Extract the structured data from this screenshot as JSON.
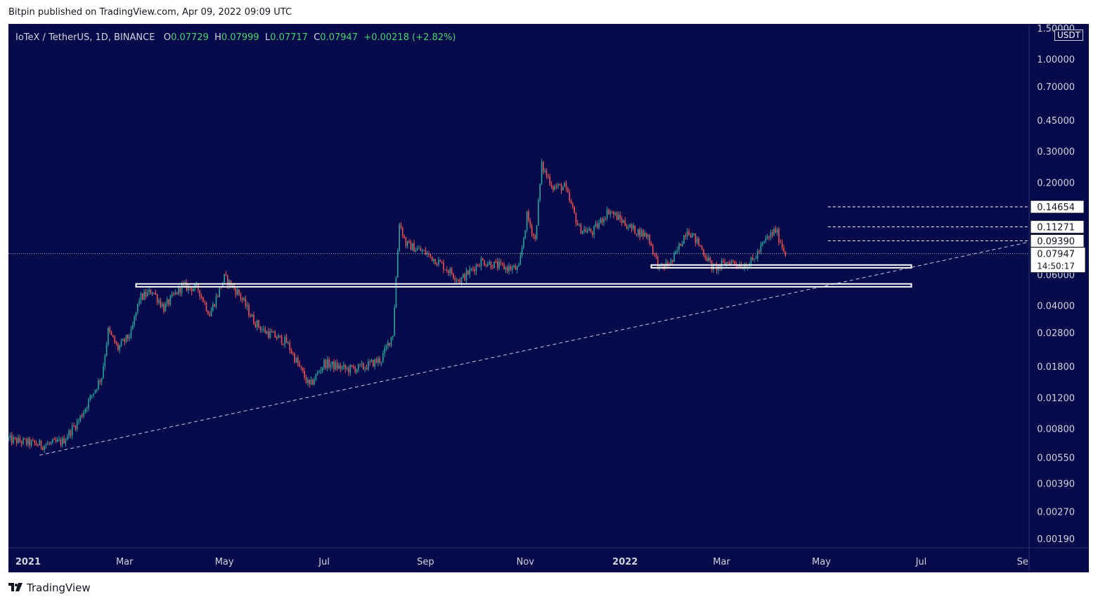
{
  "header": {
    "published_by": "Bitpin published on TradingView.com, Apr 09, 2022 09:09 UTC"
  },
  "legend": {
    "symbol": "IoTeX / TetherUS, 1D, BINANCE",
    "open_label": "O",
    "open": "0.07729",
    "high_label": "H",
    "high": "0.07999",
    "low_label": "L",
    "low": "0.07717",
    "close_label": "C",
    "close": "0.07947",
    "change": "+0.00218 (+2.82%)"
  },
  "currency_badge": "USDT",
  "footer": {
    "brand": "TradingView",
    "logo_icon": "tradingview-logo-icon"
  },
  "colors": {
    "background": "#06094a",
    "up": "#26a69a",
    "down": "#ef5350",
    "text": "#d1d4dc"
  },
  "chart_data": {
    "type": "candlestick",
    "scale": "log",
    "ylim": [
      0.0017,
      1.6
    ],
    "xlim": [
      "2020-12-20",
      "2022-09-05"
    ],
    "grid": false,
    "y_ticks": [
      {
        "value": 1.5,
        "label": "1.50000"
      },
      {
        "value": 1.0,
        "label": "1.00000"
      },
      {
        "value": 0.7,
        "label": "0.70000"
      },
      {
        "value": 0.45,
        "label": "0.45000"
      },
      {
        "value": 0.3,
        "label": "0.30000"
      },
      {
        "value": 0.2,
        "label": "0.20000"
      },
      {
        "value": 0.06,
        "label": "0.06000"
      },
      {
        "value": 0.04,
        "label": "0.04000"
      },
      {
        "value": 0.028,
        "label": "0.02800"
      },
      {
        "value": 0.018,
        "label": "0.01800"
      },
      {
        "value": 0.012,
        "label": "0.01200"
      },
      {
        "value": 0.008,
        "label": "0.00800"
      },
      {
        "value": 0.0055,
        "label": "0.00550"
      },
      {
        "value": 0.0039,
        "label": "0.00390"
      },
      {
        "value": 0.0027,
        "label": "0.00270"
      },
      {
        "value": 0.0019,
        "label": "0.00190"
      }
    ],
    "x_ticks": [
      {
        "date": "2021-01-01",
        "label": "2021",
        "bold": true
      },
      {
        "date": "2021-03-01",
        "label": "Mar"
      },
      {
        "date": "2021-05-01",
        "label": "May"
      },
      {
        "date": "2021-07-01",
        "label": "Jul"
      },
      {
        "date": "2021-09-01",
        "label": "Sep"
      },
      {
        "date": "2021-11-01",
        "label": "Nov"
      },
      {
        "date": "2022-01-01",
        "label": "2022",
        "bold": true
      },
      {
        "date": "2022-03-01",
        "label": "Mar"
      },
      {
        "date": "2022-05-01",
        "label": "May"
      },
      {
        "date": "2022-07-01",
        "label": "Jul"
      },
      {
        "date": "2022-09-01",
        "label": "Se"
      }
    ],
    "price_tags": [
      {
        "value": 0.14654,
        "label": "0.14654",
        "line_from": "2022-05-05"
      },
      {
        "value": 0.11271,
        "label": "0.11271",
        "line_from": "2022-05-05"
      },
      {
        "value": 0.0939,
        "label": "0.09390",
        "line_from": "2022-05-05"
      }
    ],
    "last_price": {
      "value": 0.07947,
      "label": "0.07947",
      "countdown": "14:50:17"
    },
    "zones": [
      {
        "name": "support-zone-upper",
        "from": "2022-01-17",
        "to": "2022-06-25",
        "low": 0.0665,
        "high": 0.0685
      },
      {
        "name": "support-zone-lower",
        "from": "2021-03-08",
        "to": "2022-06-25",
        "low": 0.0515,
        "high": 0.0535
      }
    ],
    "trendline": {
      "from": {
        "date": "2021-01-08",
        "value": 0.0057
      },
      "to": {
        "date": "2022-09-05",
        "value": 0.0925
      }
    },
    "anchors": [
      [
        "2020-12-20",
        0.007
      ],
      [
        "2021-01-10",
        0.0065
      ],
      [
        "2021-01-22",
        0.0068
      ],
      [
        "2021-02-01",
        0.009
      ],
      [
        "2021-02-08",
        0.012
      ],
      [
        "2021-02-15",
        0.016
      ],
      [
        "2021-02-19",
        0.029
      ],
      [
        "2021-02-25",
        0.023
      ],
      [
        "2021-03-05",
        0.028
      ],
      [
        "2021-03-10",
        0.044
      ],
      [
        "2021-03-18",
        0.049
      ],
      [
        "2021-03-25",
        0.039
      ],
      [
        "2021-04-05",
        0.052
      ],
      [
        "2021-04-15",
        0.05
      ],
      [
        "2021-04-22",
        0.036
      ],
      [
        "2021-05-01",
        0.058
      ],
      [
        "2021-05-10",
        0.047
      ],
      [
        "2021-05-19",
        0.033
      ],
      [
        "2021-05-25",
        0.029
      ],
      [
        "2021-06-08",
        0.025
      ],
      [
        "2021-06-22",
        0.014
      ],
      [
        "2021-07-01",
        0.019
      ],
      [
        "2021-07-15",
        0.0175
      ],
      [
        "2021-07-25",
        0.018
      ],
      [
        "2021-08-05",
        0.02
      ],
      [
        "2021-08-12",
        0.028
      ],
      [
        "2021-08-16",
        0.12
      ],
      [
        "2021-08-20",
        0.09
      ],
      [
        "2021-09-01",
        0.08
      ],
      [
        "2021-09-10",
        0.07
      ],
      [
        "2021-09-22",
        0.056
      ],
      [
        "2021-10-05",
        0.072
      ],
      [
        "2021-10-20",
        0.066
      ],
      [
        "2021-10-28",
        0.065
      ],
      [
        "2021-11-02",
        0.13
      ],
      [
        "2021-11-07",
        0.095
      ],
      [
        "2021-11-11",
        0.25
      ],
      [
        "2021-11-18",
        0.19
      ],
      [
        "2021-11-25",
        0.19
      ],
      [
        "2021-12-04",
        0.11
      ],
      [
        "2021-12-12",
        0.105
      ],
      [
        "2021-12-22",
        0.14
      ],
      [
        "2022-01-05",
        0.11
      ],
      [
        "2022-01-15",
        0.1
      ],
      [
        "2022-01-22",
        0.065
      ],
      [
        "2022-01-30",
        0.072
      ],
      [
        "2022-02-08",
        0.11
      ],
      [
        "2022-02-15",
        0.09
      ],
      [
        "2022-02-24",
        0.065
      ],
      [
        "2022-03-06",
        0.072
      ],
      [
        "2022-03-14",
        0.068
      ],
      [
        "2022-03-20",
        0.072
      ],
      [
        "2022-03-28",
        0.095
      ],
      [
        "2022-04-03",
        0.108
      ],
      [
        "2022-04-09",
        0.0795
      ]
    ]
  }
}
